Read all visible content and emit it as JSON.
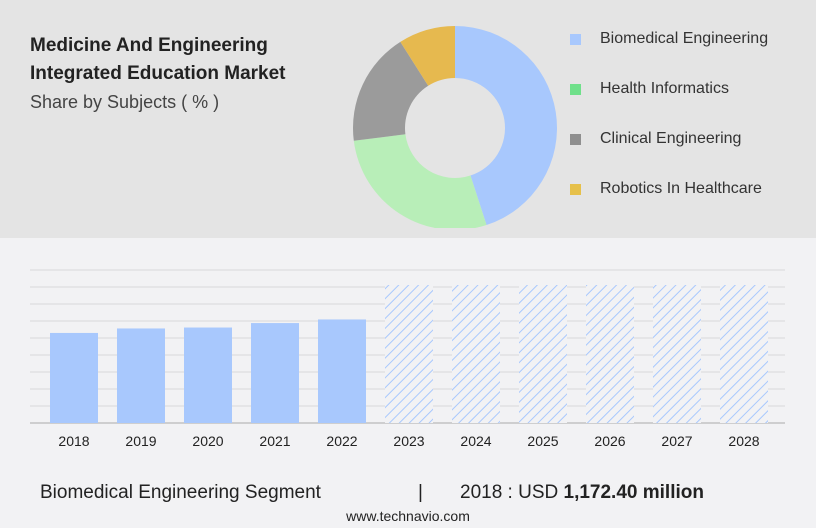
{
  "header": {
    "title_line1": "Medicine And Engineering",
    "title_line2": "Integrated Education Market",
    "subtitle": "Share by Subjects ( % )"
  },
  "chart_data": [
    {
      "type": "pie",
      "variant": "donut",
      "title": "Medicine And Engineering Integrated Education Market",
      "subtitle": "Share by Subjects ( % )",
      "legend_position": "right",
      "slices": [
        {
          "name": "Biomedical Engineering",
          "value": 45,
          "color": "#a8c8fd"
        },
        {
          "name": "Health Informatics",
          "value": 28,
          "color": "#b8eeb8"
        },
        {
          "name": "Clinical Engineering",
          "value": 18,
          "color": "#9b9b9b"
        },
        {
          "name": "Robotics In Healthcare",
          "value": 9,
          "color": "#e6b94f"
        }
      ],
      "legend_colors": [
        "#a8c8fd",
        "#6fe08a",
        "#8f8f8f",
        "#e6c04a"
      ]
    },
    {
      "type": "bar",
      "categories": [
        "2018",
        "2019",
        "2020",
        "2021",
        "2022",
        "2023",
        "2024",
        "2025",
        "2026",
        "2027",
        "2028"
      ],
      "values": [
        1172.4,
        1231,
        1243,
        1301,
        1348,
        null,
        null,
        null,
        null,
        null,
        null
      ],
      "forecast_from": "2023",
      "ylim": [
        0,
        1992
      ],
      "grid": true,
      "color": "#a8c8fd"
    }
  ],
  "footer": {
    "segment": "Biomedical Engineering Segment",
    "separator": "|",
    "year_label": "2018 : USD",
    "value": "1,172.40 million",
    "url": "www.technavio.com"
  }
}
